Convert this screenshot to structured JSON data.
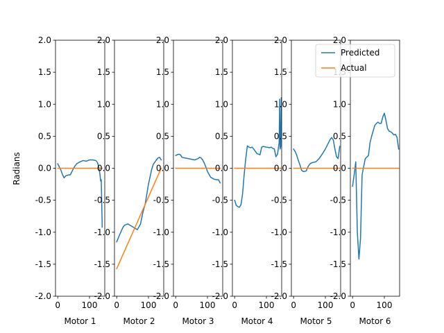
{
  "chart_data": {
    "type": "line",
    "ylabel": "Radians",
    "ylim": [
      -2.0,
      2.0
    ],
    "yticks": [
      "-2.0",
      "-1.5",
      "-1.0",
      "-0.5",
      "0.0",
      "0.5",
      "1.0",
      "1.5",
      "2.0"
    ],
    "xlim": [
      -7,
      148
    ],
    "xticks": [
      "0",
      "100"
    ],
    "grid": false,
    "legend": {
      "placement": "top-right",
      "entries": [
        {
          "name": "Predicted",
          "color": "#1f77b4"
        },
        {
          "name": "Actual",
          "color": "#ff7f0e"
        }
      ]
    },
    "panels": [
      {
        "xlabel": "Motor 1",
        "series": [
          {
            "name": "Predicted",
            "color": "#1f77b4",
            "x": [
              0,
              5,
              10,
              15,
              20,
              25,
              30,
              40,
              50,
              55,
              60,
              70,
              80,
              90,
              100,
              110,
              120,
              125,
              130,
              133,
              135,
              137,
              140
            ],
            "y": [
              0.07,
              0.02,
              -0.03,
              -0.1,
              -0.15,
              -0.12,
              -0.11,
              -0.1,
              0.0,
              0.04,
              0.07,
              0.1,
              0.12,
              0.11,
              0.13,
              0.13,
              0.12,
              0.09,
              0.0,
              -0.1,
              -0.2,
              -0.18,
              -0.92
            ]
          },
          {
            "name": "Actual",
            "color": "#ff7f0e",
            "x": [
              0,
              140
            ],
            "y": [
              0,
              0
            ]
          }
        ]
      },
      {
        "xlabel": "Motor 2",
        "series": [
          {
            "name": "Predicted",
            "color": "#1f77b4",
            "x": [
              0,
              10,
              20,
              25,
              35,
              45,
              55,
              65,
              75,
              82,
              90,
              100,
              110,
              115,
              125,
              130,
              135,
              140
            ],
            "y": [
              -1.15,
              -1.03,
              -0.92,
              -0.89,
              -0.87,
              -0.9,
              -0.93,
              -0.96,
              -0.87,
              -0.7,
              -0.55,
              -0.25,
              -0.02,
              0.06,
              0.13,
              0.16,
              0.17,
              0.13
            ]
          },
          {
            "name": "Actual",
            "color": "#ff7f0e",
            "x": [
              0,
              140
            ],
            "y": [
              -1.57,
              0
            ]
          }
        ]
      },
      {
        "xlabel": "Motor 3",
        "series": [
          {
            "name": "Predicted",
            "color": "#1f77b4",
            "x": [
              0,
              5,
              10,
              15,
              20,
              30,
              40,
              50,
              60,
              65,
              70,
              75,
              80,
              85,
              90,
              95,
              100,
              110,
              120,
              130,
              135,
              140
            ],
            "y": [
              0.2,
              0.21,
              0.22,
              0.21,
              0.17,
              0.16,
              0.15,
              0.14,
              0.13,
              0.14,
              0.15,
              0.17,
              0.16,
              0.13,
              0.08,
              0.02,
              -0.05,
              -0.14,
              -0.17,
              -0.18,
              -0.18,
              -0.23
            ]
          },
          {
            "name": "Actual",
            "color": "#ff7f0e",
            "x": [
              0,
              140
            ],
            "y": [
              0,
              0
            ]
          }
        ]
      },
      {
        "xlabel": "Motor 4",
        "series": [
          {
            "name": "Predicted",
            "color": "#1f77b4",
            "x": [
              0,
              5,
              10,
              15,
              20,
              25,
              30,
              35,
              40,
              45,
              50,
              55,
              60,
              70,
              80,
              85,
              90,
              100,
              110,
              115,
              120,
              125,
              130,
              135,
              140,
              142,
              143,
              145,
              147
            ],
            "y": [
              -0.5,
              -0.58,
              -0.6,
              -0.61,
              -0.57,
              -0.4,
              -0.1,
              0.15,
              0.35,
              0.33,
              0.32,
              0.33,
              0.3,
              0.23,
              0.21,
              0.33,
              0.34,
              0.33,
              0.32,
              0.33,
              0.31,
              0.3,
              0.18,
              0.22,
              0.4,
              1.08,
              0.3,
              0.34,
              1.1
            ]
          },
          {
            "name": "Actual",
            "color": "#ff7f0e",
            "x": [
              0,
              147
            ],
            "y": [
              0,
              0
            ]
          }
        ]
      },
      {
        "xlabel": "Motor 5",
        "series": [
          {
            "name": "Predicted",
            "color": "#1f77b4",
            "x": [
              0,
              5,
              10,
              15,
              20,
              25,
              30,
              35,
              40,
              45,
              50,
              55,
              60,
              70,
              80,
              90,
              100,
              110,
              115,
              120,
              125,
              130,
              135,
              140,
              145
            ],
            "y": [
              0.3,
              0.26,
              0.2,
              0.12,
              0.05,
              -0.03,
              -0.05,
              -0.05,
              -0.04,
              0.02,
              0.06,
              0.08,
              0.09,
              0.1,
              0.15,
              0.22,
              0.3,
              0.4,
              0.45,
              0.48,
              0.44,
              0.3,
              0.18,
              0.15,
              0.34
            ]
          },
          {
            "name": "Actual",
            "color": "#ff7f0e",
            "x": [
              0,
              145
            ],
            "y": [
              0,
              0
            ]
          }
        ]
      },
      {
        "xlabel": "Motor 6",
        "series": [
          {
            "name": "Predicted",
            "color": "#1f77b4",
            "x": [
              0,
              5,
              10,
              15,
              20,
              25,
              30,
              40,
              50,
              55,
              60,
              70,
              75,
              80,
              85,
              90,
              95,
              100,
              105,
              110,
              115,
              120,
              125,
              130,
              135,
              140,
              145
            ],
            "y": [
              -0.28,
              -0.1,
              0.1,
              -1.0,
              -1.42,
              -1.1,
              -0.1,
              0.15,
              0.2,
              0.4,
              0.5,
              0.67,
              0.7,
              0.72,
              0.7,
              0.7,
              0.8,
              0.86,
              0.75,
              0.62,
              0.58,
              0.57,
              0.55,
              0.52,
              0.53,
              0.48,
              0.3
            ]
          },
          {
            "name": "Actual",
            "color": "#ff7f0e",
            "x": [
              0,
              145
            ],
            "y": [
              0,
              0
            ]
          }
        ]
      }
    ]
  }
}
